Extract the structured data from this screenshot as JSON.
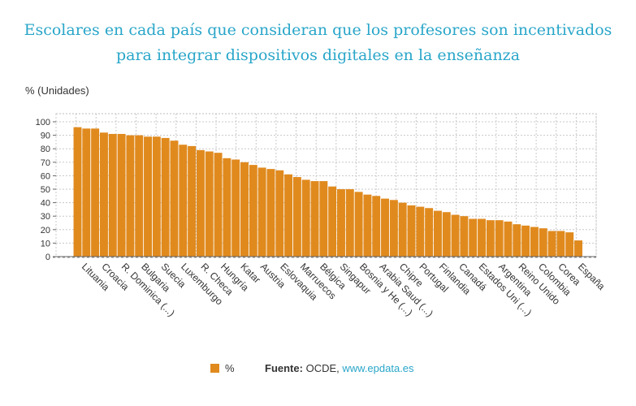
{
  "title": "Escolares en cada país que consideran que los profesores son incentivados para integrar dispositivos digitales en la enseñanza",
  "unit_label": "% (Unidades)",
  "legend": {
    "label": "%",
    "color": "#e08a1e"
  },
  "source": {
    "prefix": "Fuente:",
    "org": "OCDE,",
    "link": "www.epdata.es"
  },
  "chart_data": {
    "type": "bar",
    "series": [
      {
        "name": "%",
        "color": "#e08a1e"
      }
    ],
    "values": [
      96,
      95,
      95,
      92,
      91,
      91,
      90,
      90,
      89,
      89,
      88,
      86,
      83,
      82,
      79,
      78,
      77,
      73,
      72,
      70,
      68,
      66,
      65,
      64,
      61,
      59,
      57,
      56,
      56,
      52,
      50,
      50,
      48,
      46,
      45,
      43,
      42,
      40,
      38,
      37,
      36,
      34,
      33,
      31,
      30,
      28,
      28,
      27,
      27,
      26,
      24,
      23,
      22,
      21,
      19,
      19,
      18,
      12
    ],
    "tick_labels": [
      "Lituania",
      "Croacia",
      "R. Dominica (...)",
      "Bulgaria",
      "Suecia",
      "Luxemburgo",
      "R. Checa",
      "Hungría",
      "Katar",
      "Austria",
      "Eslovaquia",
      "Marruecos",
      "Bélgica",
      "Singapur",
      "Bosnia y He (...)",
      "Arabia Saud (...)",
      "Chipre",
      "Portugal",
      "Finlandia",
      "Canadá",
      "Estados Uni (...)",
      "Argentina",
      "Reino Unido",
      "Colombia",
      "Corea",
      "España"
    ],
    "ylim": [
      0,
      100
    ],
    "yticks": [
      0,
      10,
      20,
      30,
      40,
      50,
      60,
      70,
      80,
      90,
      100
    ],
    "grid": true
  }
}
